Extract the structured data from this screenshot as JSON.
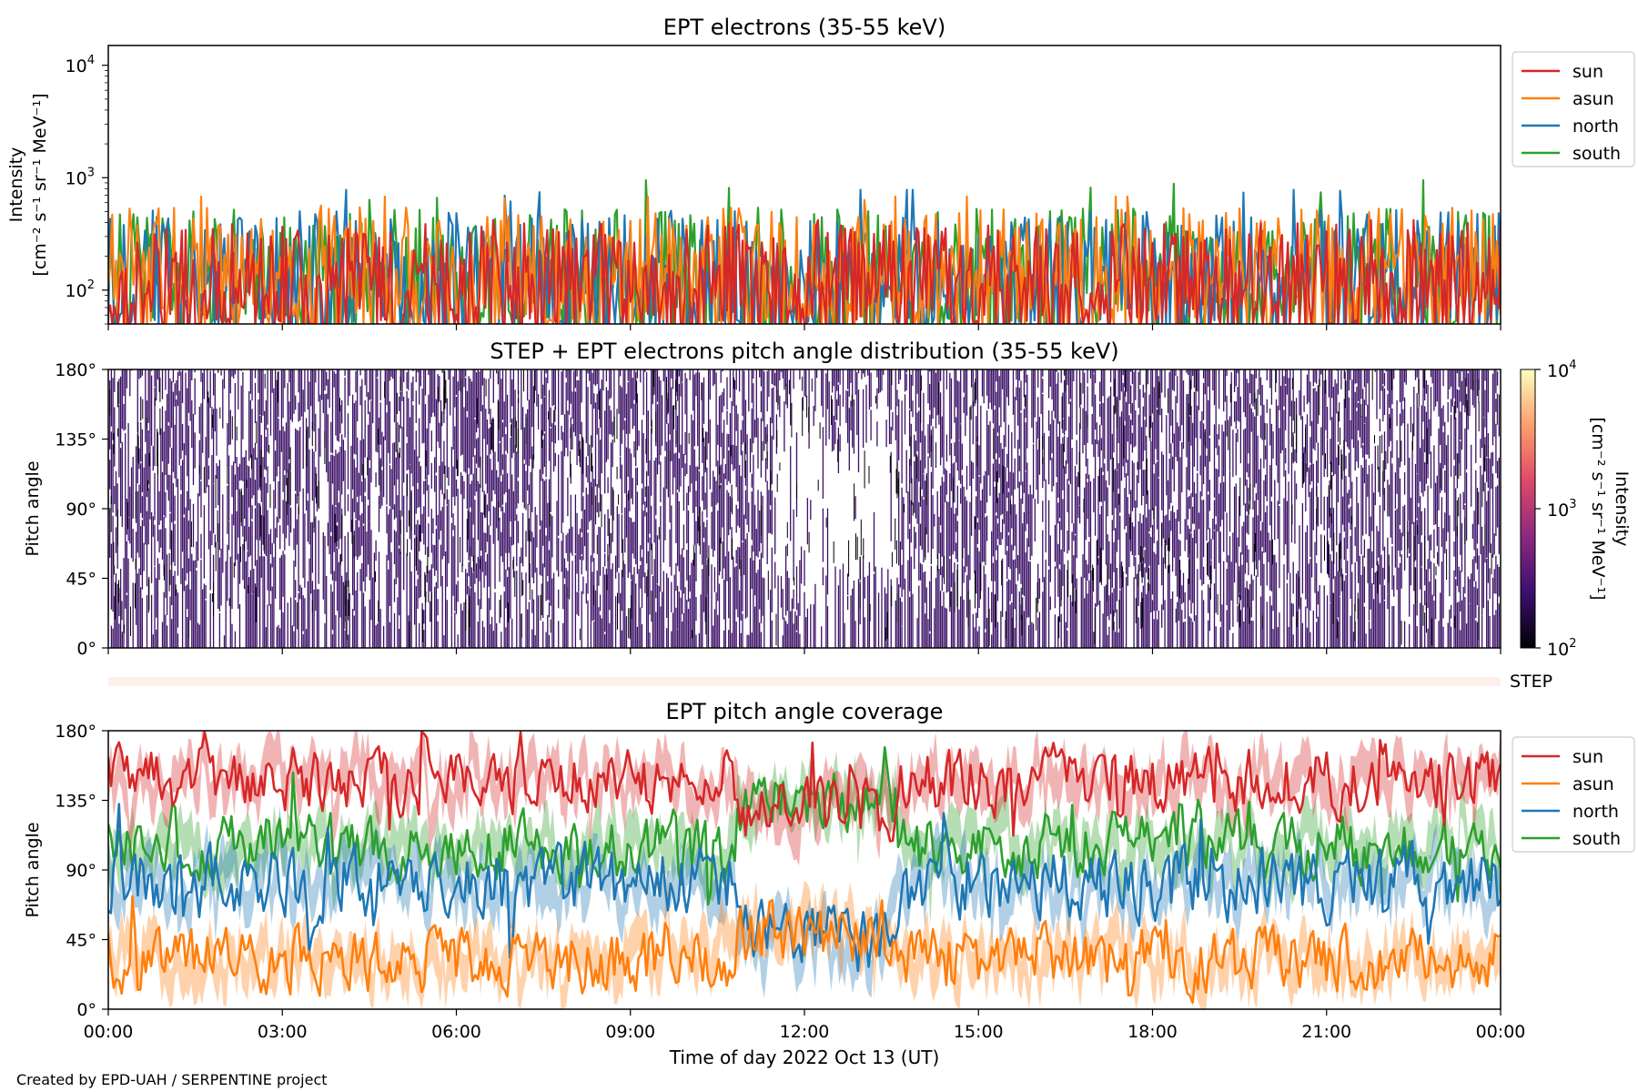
{
  "footer": "Created by EPD-UAH / SERPENTINE project",
  "colors": {
    "sun": "#d62728",
    "asun": "#ff7f0e",
    "north": "#1f77b4",
    "south": "#2ca02c",
    "pad_ink": "#3b1066",
    "step_band": "#fdf0ea"
  },
  "chart_data": [
    {
      "type": "line",
      "title": "EPT electrons (35-55 keV)",
      "ylabel_line1": "Intensity",
      "ylabel_line2": "[cm⁻² s⁻¹ sr⁻¹ MeV⁻¹]",
      "yscale": "log",
      "ylim": [
        50,
        15000
      ],
      "yticks": [
        {
          "value": 100,
          "label": "10",
          "exp": "2"
        },
        {
          "value": 1000,
          "label": "10",
          "exp": "3"
        },
        {
          "value": 10000,
          "label": "10",
          "exp": "4"
        }
      ],
      "x_range": [
        "2022-10-13T00:00",
        "2022-10-14T00:00"
      ],
      "legend_position": "upper right outside",
      "series": [
        {
          "name": "south",
          "typical": 170,
          "spread": 0.55,
          "peak_max": 950
        },
        {
          "name": "north",
          "typical": 165,
          "spread": 0.55,
          "peak_max": 780
        },
        {
          "name": "asun",
          "typical": 175,
          "spread": 0.55,
          "peak_max": 680
        },
        {
          "name": "sun",
          "typical": 140,
          "spread": 0.5,
          "peak_max": 420
        }
      ],
      "legend": [
        "sun",
        "asun",
        "north",
        "south"
      ]
    },
    {
      "type": "heatmap",
      "title": "STEP + EPT electrons pitch angle distribution (35-55 keV)",
      "ylabel": "Pitch angle",
      "ylim": [
        0,
        180
      ],
      "yticks": [
        "0°",
        "45°",
        "90°",
        "135°",
        "180°"
      ],
      "colorbar": {
        "label_line1": "Intensity",
        "label_line2": "[cm⁻² s⁻¹ sr⁻¹ MeV⁻¹]",
        "scale": "log",
        "range": [
          100,
          10000
        ],
        "ticks": [
          {
            "label": "10",
            "exp": "2"
          },
          {
            "label": "10",
            "exp": "3"
          },
          {
            "label": "10",
            "exp": "4"
          }
        ],
        "colormap": [
          "#000004",
          "#3b0f70",
          "#8c2981",
          "#de4968",
          "#fe9f6d",
          "#fcfdbf"
        ]
      },
      "x_range": [
        "2022-10-13T00:00",
        "2022-10-14T00:00"
      ],
      "gap_hours": [
        11.5,
        13.6
      ],
      "gap_pitch": [
        60,
        125
      ]
    },
    {
      "type": "heatmap",
      "title": "",
      "label": "STEP",
      "x_range": [
        "2022-10-13T00:00",
        "2022-10-14T00:00"
      ]
    },
    {
      "type": "line",
      "title": "EPT pitch angle coverage",
      "ylabel": "Pitch angle",
      "xlabel": "Time of day 2022 Oct 13 (UT)",
      "ylim": [
        0,
        180
      ],
      "yticks": [
        "0°",
        "45°",
        "90°",
        "135°",
        "180°"
      ],
      "xticks": [
        "00:00",
        "03:00",
        "06:00",
        "09:00",
        "12:00",
        "15:00",
        "18:00",
        "21:00",
        "00:00"
      ],
      "legend_position": "upper right outside",
      "legend": [
        "sun",
        "asun",
        "north",
        "south"
      ],
      "series": [
        {
          "name": "sun",
          "mean_deg": 148,
          "swing_deg": 18,
          "band_deg": 12,
          "noon_value_deg": 130
        },
        {
          "name": "asun",
          "mean_deg": 32,
          "swing_deg": 18,
          "band_deg": 12,
          "noon_value_deg": 50
        },
        {
          "name": "north",
          "mean_deg": 82,
          "swing_deg": 20,
          "band_deg": 12,
          "noon_value_deg": 45
        },
        {
          "name": "south",
          "mean_deg": 105,
          "swing_deg": 18,
          "band_deg": 12,
          "noon_value_deg": 135
        }
      ]
    }
  ]
}
